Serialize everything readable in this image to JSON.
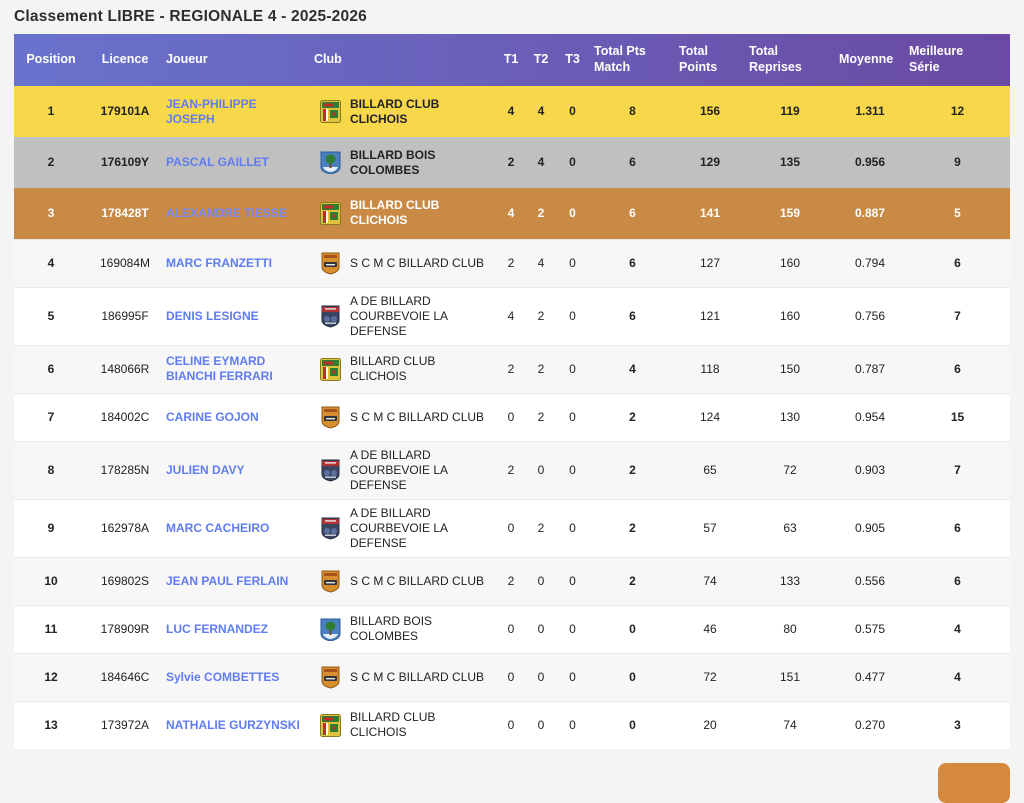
{
  "page": {
    "title": "Classement LIBRE - REGIONALE 4 - 2025-2026"
  },
  "colors": {
    "page_bg": "#f4f4f5",
    "header_gradient_start": "#6973cd",
    "header_gradient_end": "#6a4aa3",
    "gold_row": "#f7d84b",
    "silver_row": "#c1c0c0",
    "bronze_row": "#c98a46",
    "link_blue": "#5f7cf0",
    "back_to_top_orange": "#d4893d"
  },
  "table": {
    "columns": [
      {
        "key": "position",
        "label": "Position"
      },
      {
        "key": "licence",
        "label": "Licence"
      },
      {
        "key": "player",
        "label": "Joueur"
      },
      {
        "key": "club",
        "label": "Club"
      },
      {
        "key": "t1",
        "label": "T1"
      },
      {
        "key": "t2",
        "label": "T2"
      },
      {
        "key": "t3",
        "label": "T3"
      },
      {
        "key": "total_pts_match",
        "label": "Total Pts Match"
      },
      {
        "key": "total_points",
        "label": "Total Points"
      },
      {
        "key": "total_reprises",
        "label": "Total Reprises"
      },
      {
        "key": "moyenne",
        "label": "Moyenne"
      },
      {
        "key": "meilleure_serie",
        "label": "Meilleure Série"
      }
    ],
    "rows": [
      {
        "position": "1",
        "licence": "179101A",
        "player": "JEAN-PHILIPPE JOSEPH",
        "club": "BILLARD CLUB CLICHOIS",
        "club_icon": "clichois-crest-icon",
        "t1": "4",
        "t2": "4",
        "t3": "0",
        "total_pts_match": "8",
        "total_points": "156",
        "total_reprises": "119",
        "moyenne": "1.311",
        "meilleure_serie": "12",
        "highlight": "rank1"
      },
      {
        "position": "2",
        "licence": "176109Y",
        "player": "PASCAL GAILLET",
        "club": "BILLARD BOIS COLOMBES",
        "club_icon": "bois-colombes-crest-icon",
        "t1": "2",
        "t2": "4",
        "t3": "0",
        "total_pts_match": "6",
        "total_points": "129",
        "total_reprises": "135",
        "moyenne": "0.956",
        "meilleure_serie": "9",
        "highlight": "rank2"
      },
      {
        "position": "3",
        "licence": "178428T",
        "player": "ALEXANDRE TIESSE",
        "club": "BILLARD CLUB CLICHOIS",
        "club_icon": "clichois-crest-icon",
        "t1": "4",
        "t2": "2",
        "t3": "0",
        "total_pts_match": "6",
        "total_points": "141",
        "total_reprises": "159",
        "moyenne": "0.887",
        "meilleure_serie": "5",
        "highlight": "rank3"
      },
      {
        "position": "4",
        "licence": "169084M",
        "player": "MARC FRANZETTI",
        "club": "S C M C BILLARD CLUB",
        "club_icon": "scmc-crest-icon",
        "t1": "2",
        "t2": "4",
        "t3": "0",
        "total_pts_match": "6",
        "total_points": "127",
        "total_reprises": "160",
        "moyenne": "0.794",
        "meilleure_serie": "6",
        "highlight": ""
      },
      {
        "position": "5",
        "licence": "186995F",
        "player": "DENIS LESIGNE",
        "club": "A DE BILLARD COURBEVOIE LA DEFENSE",
        "club_icon": "courbevoie-crest-icon",
        "t1": "4",
        "t2": "2",
        "t3": "0",
        "total_pts_match": "6",
        "total_points": "121",
        "total_reprises": "160",
        "moyenne": "0.756",
        "meilleure_serie": "7",
        "highlight": ""
      },
      {
        "position": "6",
        "licence": "148066R",
        "player": "CELINE EYMARD BIANCHI FERRARI",
        "club": "BILLARD CLUB CLICHOIS",
        "club_icon": "clichois-crest-icon",
        "t1": "2",
        "t2": "2",
        "t3": "0",
        "total_pts_match": "4",
        "total_points": "118",
        "total_reprises": "150",
        "moyenne": "0.787",
        "meilleure_serie": "6",
        "highlight": ""
      },
      {
        "position": "7",
        "licence": "184002C",
        "player": "CARINE GOJON",
        "club": "S C M C BILLARD CLUB",
        "club_icon": "scmc-crest-icon",
        "t1": "0",
        "t2": "2",
        "t3": "0",
        "total_pts_match": "2",
        "total_points": "124",
        "total_reprises": "130",
        "moyenne": "0.954",
        "meilleure_serie": "15",
        "highlight": ""
      },
      {
        "position": "8",
        "licence": "178285N",
        "player": "JULIEN DAVY",
        "club": "A DE BILLARD COURBEVOIE LA DEFENSE",
        "club_icon": "courbevoie-crest-icon",
        "t1": "2",
        "t2": "0",
        "t3": "0",
        "total_pts_match": "2",
        "total_points": "65",
        "total_reprises": "72",
        "moyenne": "0.903",
        "meilleure_serie": "7",
        "highlight": ""
      },
      {
        "position": "9",
        "licence": "162978A",
        "player": "MARC CACHEIRO",
        "club": "A DE BILLARD COURBEVOIE LA DEFENSE",
        "club_icon": "courbevoie-crest-icon",
        "t1": "0",
        "t2": "2",
        "t3": "0",
        "total_pts_match": "2",
        "total_points": "57",
        "total_reprises": "63",
        "moyenne": "0.905",
        "meilleure_serie": "6",
        "highlight": ""
      },
      {
        "position": "10",
        "licence": "169802S",
        "player": "JEAN PAUL FERLAIN",
        "club": "S C M C BILLARD CLUB",
        "club_icon": "scmc-crest-icon",
        "t1": "2",
        "t2": "0",
        "t3": "0",
        "total_pts_match": "2",
        "total_points": "74",
        "total_reprises": "133",
        "moyenne": "0.556",
        "meilleure_serie": "6",
        "highlight": ""
      },
      {
        "position": "11",
        "licence": "178909R",
        "player": "LUC FERNANDEZ",
        "club": "BILLARD BOIS COLOMBES",
        "club_icon": "bois-colombes-crest-icon",
        "t1": "0",
        "t2": "0",
        "t3": "0",
        "total_pts_match": "0",
        "total_points": "46",
        "total_reprises": "80",
        "moyenne": "0.575",
        "meilleure_serie": "4",
        "highlight": ""
      },
      {
        "position": "12",
        "licence": "184646C",
        "player": "Sylvie COMBETTES",
        "club": "S C M C BILLARD CLUB",
        "club_icon": "scmc-crest-icon",
        "t1": "0",
        "t2": "0",
        "t3": "0",
        "total_pts_match": "0",
        "total_points": "72",
        "total_reprises": "151",
        "moyenne": "0.477",
        "meilleure_serie": "4",
        "highlight": ""
      },
      {
        "position": "13",
        "licence": "173972A",
        "player": "NATHALIE GURZYNSKI",
        "club": "BILLARD CLUB CLICHOIS",
        "club_icon": "clichois-crest-icon",
        "t1": "0",
        "t2": "0",
        "t3": "0",
        "total_pts_match": "0",
        "total_points": "20",
        "total_reprises": "74",
        "moyenne": "0.270",
        "meilleure_serie": "3",
        "highlight": ""
      }
    ]
  }
}
